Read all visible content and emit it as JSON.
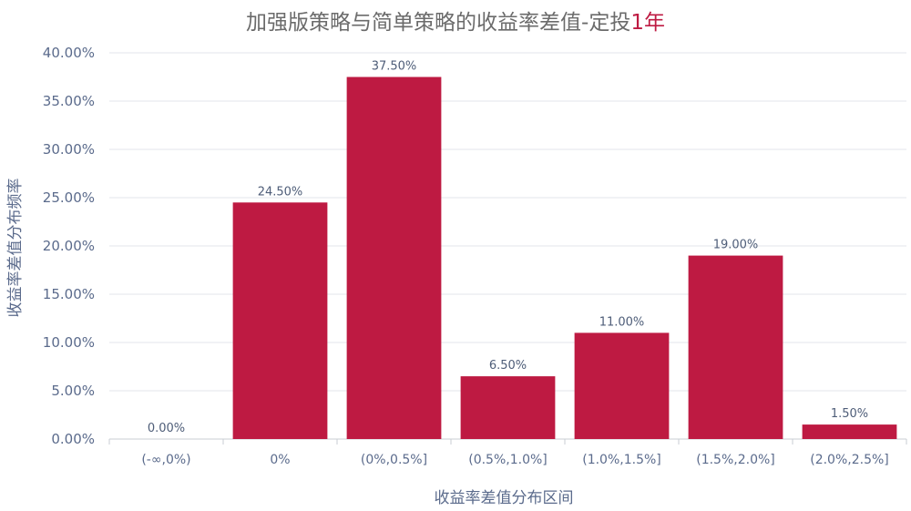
{
  "chart_data": {
    "type": "bar",
    "title_main": "加强版策略与简单策略的收益率差值-定投",
    "title_highlight": "1年",
    "xlabel": "收益率差值分布区间",
    "ylabel": "收益率差值分布频率",
    "categories": [
      "(-∞,0%)",
      "0%",
      "(0%,0.5%]",
      "(0.5%,1.0%]",
      "(1.0%,1.5%]",
      "(1.5%,2.0%]",
      "(2.0%,2.5%]"
    ],
    "values": [
      0.0,
      24.5,
      37.5,
      6.5,
      11.0,
      19.0,
      1.5
    ],
    "data_labels": [
      "0.00%",
      "24.50%",
      "37.50%",
      "6.50%",
      "11.00%",
      "19.00%",
      "1.50%"
    ],
    "yticks": [
      "0.00%",
      "5.00%",
      "10.00%",
      "15.00%",
      "20.00%",
      "25.00%",
      "30.00%",
      "35.00%",
      "40.00%"
    ],
    "ylim": [
      0,
      40
    ],
    "grid": true,
    "colors": {
      "bar": "#be1a42",
      "title": "#6b6b6b",
      "title_highlight": "#be1a42",
      "axis_text": "#5b6b8c"
    }
  }
}
